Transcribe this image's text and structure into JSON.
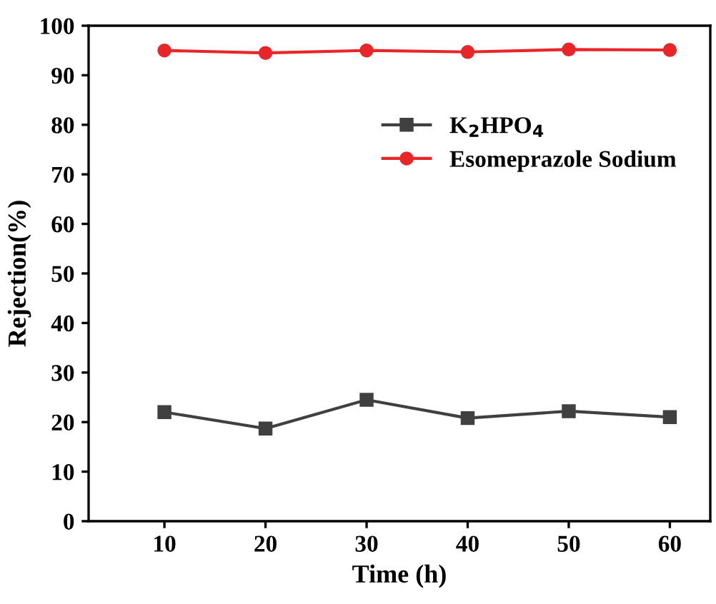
{
  "chart_data": {
    "type": "line",
    "xlabel": "Time (h)",
    "ylabel": "Rejection(%)",
    "x": [
      10,
      20,
      30,
      40,
      50,
      60
    ],
    "series": [
      {
        "name": "K$_{2}$HPO$_{4}$",
        "color": "#404040",
        "marker": "square",
        "values": [
          22,
          18.7,
          24.5,
          20.8,
          22.2,
          21
        ]
      },
      {
        "name": "Esomeprazole Sodium",
        "color": "#e8262a",
        "marker": "circle",
        "values": [
          95,
          94.5,
          95,
          94.7,
          95.2,
          95.1
        ]
      }
    ],
    "xlim": [
      2.5,
      64
    ],
    "ylim": [
      0,
      100
    ],
    "xticks": [
      10,
      20,
      30,
      40,
      50,
      60
    ],
    "yticks": [
      0,
      10,
      20,
      30,
      40,
      50,
      60,
      70,
      80,
      90,
      100
    ],
    "grid": false,
    "legend": "top right",
    "line_style": "solid"
  }
}
